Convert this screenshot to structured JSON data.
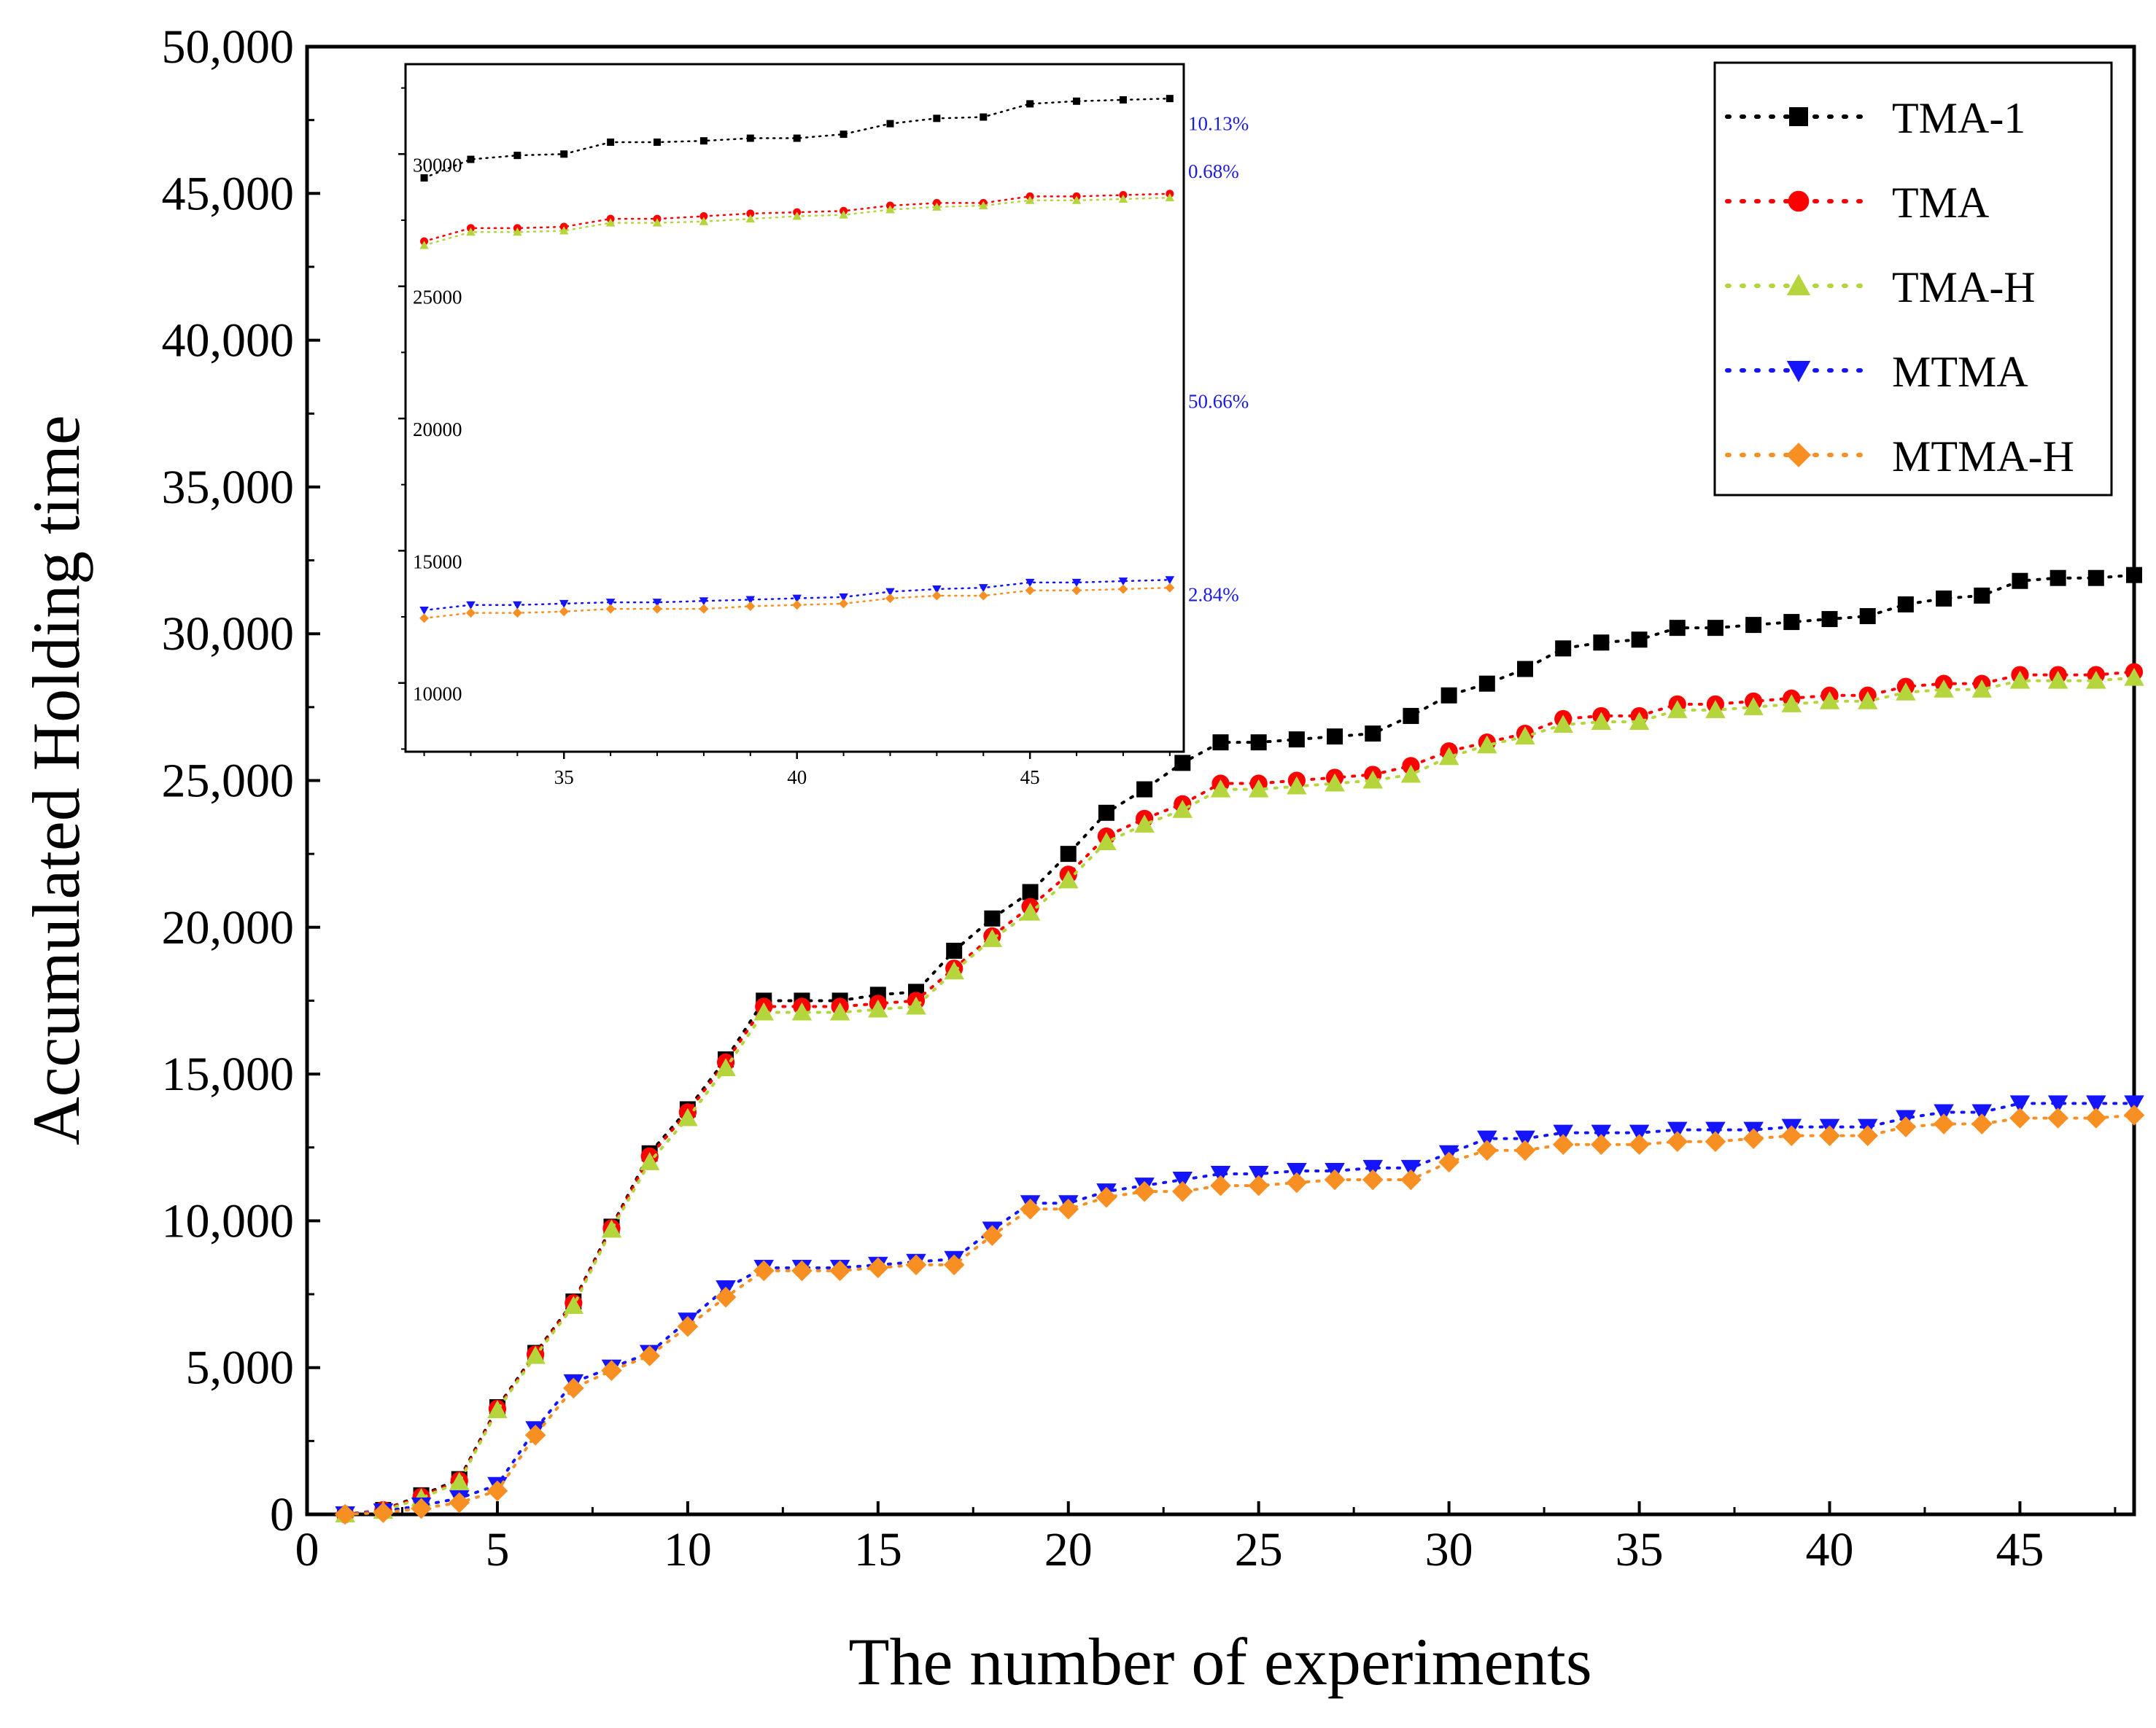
{
  "chart_data": [
    {
      "id": "main",
      "type": "scatter",
      "xlabel": "The number of experiments",
      "ylabel": "Accumulated Holding time",
      "xlim": [
        0,
        48
      ],
      "ylim": [
        0,
        50000
      ],
      "xticks": [
        0,
        5,
        10,
        15,
        20,
        25,
        30,
        35,
        40,
        45
      ],
      "xtick_labels": [
        "0",
        "5",
        "10",
        "15",
        "20",
        "25",
        "30",
        "35",
        "40",
        "45"
      ],
      "yticks": [
        0,
        5000,
        10000,
        15000,
        20000,
        25000,
        30000,
        35000,
        40000,
        45000,
        50000
      ],
      "ytick_labels": [
        "0",
        "5,000",
        "10,000",
        "15,000",
        "20,000",
        "25,000",
        "30,000",
        "35,000",
        "40,000",
        "45,000",
        "50,000"
      ],
      "legend_position": "top-right",
      "x": [
        1,
        2,
        3,
        4,
        5,
        6,
        7,
        8,
        9,
        10,
        11,
        12,
        13,
        14,
        15,
        16,
        17,
        18,
        19,
        20,
        21,
        22,
        23,
        24,
        25,
        26,
        27,
        28,
        29,
        30,
        31,
        32,
        33,
        34,
        35,
        36,
        37,
        38,
        39,
        40,
        41,
        42,
        43,
        44,
        45,
        46,
        47,
        48
      ],
      "series": [
        {
          "name": "TMA-1",
          "color": "#000000",
          "marker": "square",
          "values": [
            0,
            150,
            650,
            1200,
            3650,
            5500,
            7250,
            9800,
            12300,
            13800,
            15500,
            17500,
            17500,
            17500,
            17700,
            17800,
            19200,
            20300,
            21200,
            22500,
            23900,
            24700,
            25600,
            26300,
            26300,
            26400,
            26500,
            26600,
            27200,
            27900,
            28300,
            28800,
            29500,
            29700,
            29800,
            30200,
            30200,
            30300,
            30400,
            30500,
            30600,
            31000,
            31200,
            31300,
            31800,
            31900,
            31900,
            32000
          ]
        },
        {
          "name": "TMA",
          "color": "#ff0000",
          "marker": "circle",
          "values": [
            0,
            150,
            600,
            1150,
            3600,
            5450,
            7200,
            9750,
            12200,
            13700,
            15400,
            17300,
            17300,
            17300,
            17400,
            17500,
            18600,
            19700,
            20700,
            21800,
            23100,
            23700,
            24200,
            24900,
            24900,
            25000,
            25100,
            25200,
            25500,
            26000,
            26300,
            26600,
            27100,
            27200,
            27200,
            27600,
            27600,
            27700,
            27800,
            27900,
            27900,
            28200,
            28300,
            28300,
            28600,
            28600,
            28600,
            28700
          ]
        },
        {
          "name": "TMA-H",
          "color": "#b5d53d",
          "marker": "triangle-up",
          "values": [
            0,
            120,
            550,
            1100,
            3550,
            5400,
            7100,
            9700,
            12000,
            13500,
            15200,
            17100,
            17100,
            17100,
            17200,
            17300,
            18500,
            19600,
            20500,
            21600,
            22900,
            23500,
            24000,
            24700,
            24700,
            24800,
            24900,
            25000,
            25200,
            25800,
            26200,
            26500,
            26900,
            27000,
            27000,
            27400,
            27400,
            27500,
            27600,
            27700,
            27700,
            28000,
            28100,
            28100,
            28400,
            28400,
            28400,
            28500
          ]
        },
        {
          "name": "MTMA",
          "color": "#1414ff",
          "marker": "triangle-down",
          "values": [
            0,
            100,
            300,
            550,
            1000,
            2900,
            4500,
            5000,
            5500,
            6600,
            7700,
            8400,
            8400,
            8400,
            8500,
            8600,
            8700,
            9700,
            10600,
            10600,
            11000,
            11200,
            11400,
            11600,
            11600,
            11700,
            11700,
            11800,
            11800,
            12300,
            12800,
            12800,
            13000,
            13000,
            13000,
            13100,
            13100,
            13100,
            13200,
            13200,
            13200,
            13500,
            13700,
            13700,
            14000,
            14000,
            14000,
            14000
          ]
        },
        {
          "name": "MTMA-H",
          "color": "#f88f22",
          "marker": "diamond",
          "values": [
            0,
            60,
            200,
            400,
            800,
            2700,
            4300,
            4900,
            5400,
            6400,
            7400,
            8300,
            8300,
            8300,
            8400,
            8500,
            8500,
            9500,
            10400,
            10400,
            10800,
            11000,
            11000,
            11200,
            11200,
            11300,
            11400,
            11400,
            11400,
            12000,
            12400,
            12400,
            12600,
            12600,
            12600,
            12700,
            12700,
            12800,
            12900,
            12900,
            12900,
            13200,
            13300,
            13300,
            13500,
            13500,
            13500,
            13600
          ]
        }
      ]
    },
    {
      "id": "inset",
      "type": "scatter",
      "xlim": [
        31.6,
        48.3
      ],
      "ylim": [
        7400,
        33400
      ],
      "xticks": [
        35,
        40,
        45
      ],
      "xtick_labels": [
        "35",
        "40",
        "45"
      ],
      "yticks": [
        10000,
        15000,
        20000,
        25000,
        30000
      ],
      "ytick_labels": [
        "10000",
        "15000",
        "20000",
        "25000",
        "30000"
      ],
      "x": [
        32,
        33,
        34,
        35,
        36,
        37,
        38,
        39,
        40,
        41,
        42,
        43,
        44,
        45,
        46,
        47,
        48
      ],
      "series": [
        {
          "name": "TMA-1",
          "color": "#000000",
          "marker": "square",
          "values": [
            29100,
            29800,
            29950,
            30000,
            30450,
            30450,
            30500,
            30600,
            30600,
            30750,
            31150,
            31350,
            31400,
            31900,
            32000,
            32050,
            32100
          ]
        },
        {
          "name": "TMA",
          "color": "#ff0000",
          "marker": "circle",
          "values": [
            26700,
            27200,
            27200,
            27250,
            27550,
            27550,
            27650,
            27750,
            27800,
            27850,
            28050,
            28150,
            28150,
            28400,
            28400,
            28450,
            28500
          ]
        },
        {
          "name": "TMA-H",
          "color": "#b5d53d",
          "marker": "triangle-up",
          "values": [
            26550,
            27050,
            27050,
            27100,
            27400,
            27400,
            27450,
            27550,
            27650,
            27700,
            27900,
            28000,
            28050,
            28250,
            28250,
            28300,
            28350
          ]
        },
        {
          "name": "MTMA",
          "color": "#1414ff",
          "marker": "triangle-down",
          "values": [
            12750,
            12950,
            12950,
            13000,
            13050,
            13050,
            13100,
            13150,
            13200,
            13250,
            13450,
            13550,
            13600,
            13800,
            13800,
            13850,
            13900
          ]
        },
        {
          "name": "MTMA-H",
          "color": "#f88f22",
          "marker": "diamond",
          "values": [
            12450,
            12650,
            12650,
            12700,
            12800,
            12800,
            12800,
            12900,
            12950,
            13000,
            13200,
            13300,
            13300,
            13500,
            13500,
            13550,
            13600
          ]
        }
      ],
      "annotations": [
        {
          "text": "10.13%",
          "y": 30900
        },
        {
          "text": "0.68%",
          "y": 29100
        },
        {
          "text": "50.66%",
          "y": 20400
        },
        {
          "text": "2.84%",
          "y": 13100
        }
      ]
    }
  ]
}
